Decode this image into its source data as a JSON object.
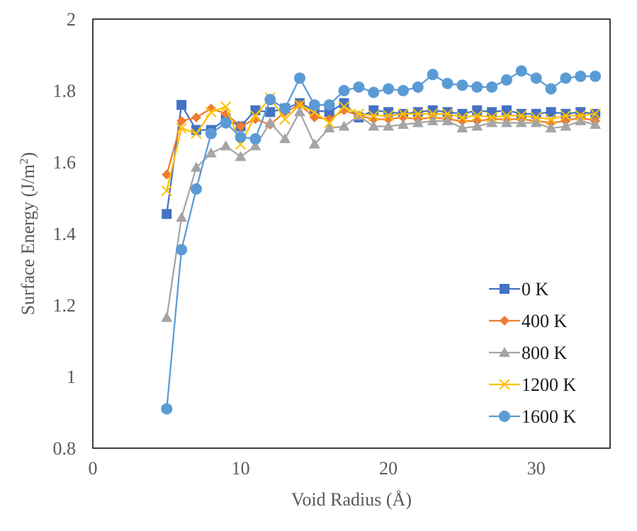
{
  "chart_data": {
    "type": "line",
    "title": "",
    "xlabel": "Void Radius (Å)",
    "ylabel": "Surface Energy (J/m²)",
    "xlim": [
      0,
      35
    ],
    "ylim": [
      0.8,
      2.0
    ],
    "xticks": [
      0,
      10,
      20,
      30
    ],
    "yticks": [
      0.8,
      1.0,
      1.2,
      1.4,
      1.6,
      1.8,
      2.0
    ],
    "xtick_labels": [
      "0",
      "10",
      "20",
      "30"
    ],
    "ytick_labels": [
      "0.8",
      "1",
      "1.2",
      "1.4",
      "1.6",
      "1.8",
      "2"
    ],
    "grid": false,
    "legend_position": "right",
    "x": [
      5,
      6,
      7,
      8,
      9,
      10,
      11,
      12,
      13,
      14,
      15,
      16,
      17,
      18,
      19,
      20,
      21,
      22,
      23,
      24,
      25,
      26,
      27,
      28,
      29,
      30,
      31,
      32,
      33,
      34
    ],
    "series": [
      {
        "name": "0 K",
        "color": "#4472C4",
        "marker": "square",
        "values": [
          1.455,
          1.76,
          1.69,
          1.69,
          1.72,
          1.7,
          1.745,
          1.74,
          1.75,
          1.765,
          1.745,
          1.74,
          1.765,
          1.725,
          1.745,
          1.74,
          1.735,
          1.74,
          1.745,
          1.74,
          1.735,
          1.745,
          1.74,
          1.745,
          1.735,
          1.735,
          1.74,
          1.735,
          1.74,
          1.735
        ]
      },
      {
        "name": "400 K",
        "color": "#ED7D31",
        "marker": "diamond",
        "values": [
          1.565,
          1.715,
          1.725,
          1.75,
          1.735,
          1.7,
          1.72,
          1.705,
          1.74,
          1.76,
          1.725,
          1.72,
          1.745,
          1.73,
          1.72,
          1.72,
          1.725,
          1.72,
          1.725,
          1.72,
          1.715,
          1.715,
          1.72,
          1.72,
          1.72,
          1.715,
          1.71,
          1.715,
          1.725,
          1.715
        ]
      },
      {
        "name": "800 K",
        "color": "#A5A5A5",
        "marker": "triangle",
        "values": [
          1.165,
          1.445,
          1.585,
          1.625,
          1.645,
          1.615,
          1.645,
          1.71,
          1.665,
          1.74,
          1.65,
          1.695,
          1.7,
          1.73,
          1.7,
          1.7,
          1.705,
          1.71,
          1.715,
          1.715,
          1.695,
          1.7,
          1.71,
          1.71,
          1.71,
          1.71,
          1.695,
          1.7,
          1.715,
          1.705
        ]
      },
      {
        "name": "1200 K",
        "color": "#FFC000",
        "marker": "x",
        "values": [
          1.52,
          1.695,
          1.68,
          1.74,
          1.755,
          1.65,
          1.73,
          1.78,
          1.72,
          1.76,
          1.74,
          1.71,
          1.755,
          1.735,
          1.73,
          1.73,
          1.735,
          1.735,
          1.735,
          1.735,
          1.725,
          1.73,
          1.725,
          1.73,
          1.73,
          1.725,
          1.72,
          1.73,
          1.73,
          1.735
        ]
      },
      {
        "name": "1600 K",
        "color": "#5B9BD5",
        "marker": "circle",
        "values": [
          0.91,
          1.355,
          1.525,
          1.68,
          1.71,
          1.67,
          1.665,
          1.775,
          1.75,
          1.835,
          1.76,
          1.76,
          1.8,
          1.81,
          1.795,
          1.805,
          1.8,
          1.81,
          1.845,
          1.82,
          1.815,
          1.81,
          1.81,
          1.83,
          1.855,
          1.835,
          1.805,
          1.835,
          1.84,
          1.84
        ]
      }
    ]
  }
}
